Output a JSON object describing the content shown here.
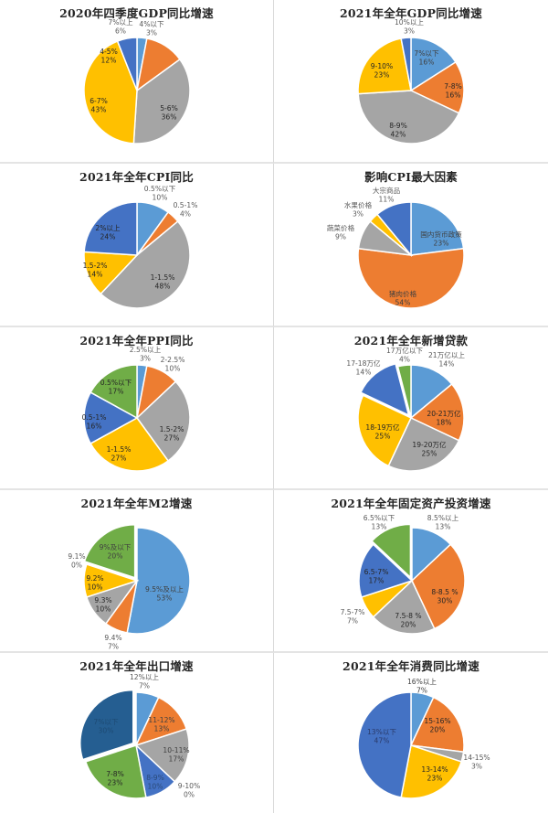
{
  "colors": {
    "light_blue": "#5b9bd5",
    "orange": "#ed7d31",
    "gray": "#a5a5a5",
    "gold": "#ffc000",
    "blue": "#4472c4",
    "green": "#70ad47",
    "dark_blue": "#255e91",
    "border": "#d9d9d9"
  },
  "charts": [
    {
      "title": "2020年四季度GDP同比增速",
      "slices": [
        {
          "label": "4%以下",
          "value": "3%"
        },
        {
          "label": "4-5%",
          "value": "12%"
        },
        {
          "label": "5-6%",
          "value": "36%"
        },
        {
          "label": "6-7%",
          "value": "43%"
        },
        {
          "label": "7%以上",
          "value": "6%"
        }
      ]
    },
    {
      "title": "2021年全年GDP同比增速",
      "slices": [
        {
          "label": "7%以下",
          "value": "16%"
        },
        {
          "label": "7-8%",
          "value": "16%"
        },
        {
          "label": "8-9%",
          "value": "42%"
        },
        {
          "label": "9-10%",
          "value": "23%"
        },
        {
          "label": "10%以上",
          "value": "3%"
        }
      ]
    },
    {
      "title": "2021年全年CPI同比",
      "slices": [
        {
          "label": "0.5%以下",
          "value": "10%"
        },
        {
          "label": "0.5-1%",
          "value": "4%"
        },
        {
          "label": "1-1.5%",
          "value": "48%"
        },
        {
          "label": "1.5-2%",
          "value": "14%"
        },
        {
          "label": "2%以上",
          "value": "24%"
        }
      ]
    },
    {
      "title": "影响CPI最大因素",
      "slices": [
        {
          "label": "国内货币政策",
          "value": "23%"
        },
        {
          "label": "猪肉价格",
          "value": "54%"
        },
        {
          "label": "蔬菜价格",
          "value": "9%"
        },
        {
          "label": "水果价格",
          "value": "3%"
        },
        {
          "label": "大宗商品",
          "value": "11%"
        }
      ]
    },
    {
      "title": "2021年全年PPI同比",
      "slices": [
        {
          "label": "2.5%以上",
          "value": "3%"
        },
        {
          "label": "2-2.5%",
          "value": "10%"
        },
        {
          "label": "1.5-2%",
          "value": "27%"
        },
        {
          "label": "1-1.5%",
          "value": "27%"
        },
        {
          "label": "0.5-1%",
          "value": "16%"
        },
        {
          "label": "0.5%以下",
          "value": "17%"
        }
      ]
    },
    {
      "title": "2021年全年新增贷款",
      "slices": [
        {
          "label": "21万亿以上",
          "value": "14%"
        },
        {
          "label": "20-21万亿",
          "value": "18%"
        },
        {
          "label": "19-20万亿",
          "value": "25%"
        },
        {
          "label": "18-19万亿",
          "value": "25%"
        },
        {
          "label": "17-18万亿",
          "value": "14%"
        },
        {
          "label": "17万亿以下",
          "value": "4%"
        }
      ]
    },
    {
      "title": "2021年全年M2增速",
      "slices": [
        {
          "label": "9.5%及以上",
          "value": "53%"
        },
        {
          "label": "9.4%",
          "value": "7%"
        },
        {
          "label": "9.3%",
          "value": "10%"
        },
        {
          "label": "9.2%",
          "value": "10%"
        },
        {
          "label": "9.1%",
          "value": "0%"
        },
        {
          "label": "9%及以下",
          "value": "20%"
        }
      ]
    },
    {
      "title": "2021年全年固定资产投资增速",
      "slices": [
        {
          "label": "8.5%以上",
          "value": "13%"
        },
        {
          "label": "8-8.5 %",
          "value": "30%"
        },
        {
          "label": "7.5-8 %",
          "value": "20%"
        },
        {
          "label": "7.5-7%",
          "value": "7%"
        },
        {
          "label": "6.5-7%",
          "value": "17%"
        },
        {
          "label": "6.5%以下",
          "value": "13%"
        }
      ]
    },
    {
      "title": "2021年全年出口增速",
      "slices": [
        {
          "label": "12%以上",
          "value": "7%"
        },
        {
          "label": "11-12%",
          "value": "13%"
        },
        {
          "label": "10-11%",
          "value": "17%"
        },
        {
          "label": "9-10%",
          "value": "0%"
        },
        {
          "label": "8-9%",
          "value": "10%"
        },
        {
          "label": "7-8%",
          "value": "23%"
        },
        {
          "label": "7%以下",
          "value": "30%"
        }
      ]
    },
    {
      "title": "2021年全年消费同比增速",
      "slices": [
        {
          "label": "16%以上",
          "value": "7%"
        },
        {
          "label": "15-16%",
          "value": "20%"
        },
        {
          "label": "14-15%",
          "value": "3%"
        },
        {
          "label": "13-14%",
          "value": "23%"
        },
        {
          "label": "13%以下",
          "value": "47%"
        }
      ]
    }
  ],
  "chart_data": [
    {
      "type": "pie",
      "title": "2020年四季度GDP同比增速",
      "categories": [
        "4%以下",
        "4-5%",
        "5-6%",
        "6-7%",
        "7%以上"
      ],
      "values": [
        3,
        12,
        36,
        43,
        6
      ]
    },
    {
      "type": "pie",
      "title": "2021年全年GDP同比增速",
      "categories": [
        "7%以下",
        "7-8%",
        "8-9%",
        "9-10%",
        "10%以上"
      ],
      "values": [
        16,
        16,
        42,
        23,
        3
      ]
    },
    {
      "type": "pie",
      "title": "2021年全年CPI同比",
      "categories": [
        "0.5%以下",
        "0.5-1%",
        "1-1.5%",
        "1.5-2%",
        "2%以上"
      ],
      "values": [
        10,
        4,
        48,
        14,
        24
      ]
    },
    {
      "type": "pie",
      "title": "影响CPI最大因素",
      "categories": [
        "国内货币政策",
        "猪肉价格",
        "蔬菜价格",
        "水果价格",
        "大宗商品"
      ],
      "values": [
        23,
        54,
        9,
        3,
        11
      ]
    },
    {
      "type": "pie",
      "title": "2021年全年PPI同比",
      "categories": [
        "2.5%以上",
        "2-2.5%",
        "1.5-2%",
        "1-1.5%",
        "0.5-1%",
        "0.5%以下"
      ],
      "values": [
        3,
        10,
        27,
        27,
        16,
        17
      ]
    },
    {
      "type": "pie",
      "title": "2021年全年新增贷款",
      "categories": [
        "21万亿以上",
        "20-21万亿",
        "19-20万亿",
        "18-19万亿",
        "17-18万亿",
        "17万亿以下"
      ],
      "values": [
        14,
        18,
        25,
        25,
        14,
        4
      ]
    },
    {
      "type": "pie",
      "title": "2021年全年M2增速",
      "categories": [
        "9.5%及以上",
        "9.4%",
        "9.3%",
        "9.2%",
        "9.1%",
        "9%及以下"
      ],
      "values": [
        53,
        7,
        10,
        10,
        0,
        20
      ]
    },
    {
      "type": "pie",
      "title": "2021年全年固定资产投资增速",
      "categories": [
        "8.5%以上",
        "8-8.5 %",
        "7.5-8 %",
        "7.5-7%",
        "6.5-7%",
        "6.5%以下"
      ],
      "values": [
        13,
        30,
        20,
        7,
        17,
        13
      ]
    },
    {
      "type": "pie",
      "title": "2021年全年出口增速",
      "categories": [
        "12%以上",
        "11-12%",
        "10-11%",
        "9-10%",
        "8-9%",
        "7-8%",
        "7%以下"
      ],
      "values": [
        7,
        13,
        17,
        0,
        10,
        23,
        30
      ]
    },
    {
      "type": "pie",
      "title": "2021年全年消费同比增速",
      "categories": [
        "16%以上",
        "15-16%",
        "14-15%",
        "13-14%",
        "13%以下"
      ],
      "values": [
        7,
        20,
        3,
        23,
        47
      ]
    }
  ]
}
